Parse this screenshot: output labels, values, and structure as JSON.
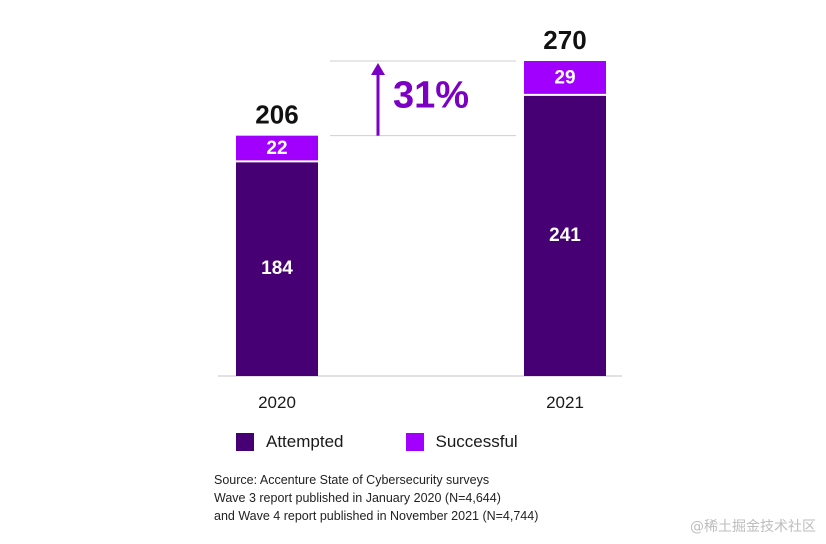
{
  "chart_data": {
    "type": "bar",
    "stacked": true,
    "categories": [
      "2020",
      "2021"
    ],
    "series": [
      {
        "name": "Attempted",
        "values": [
          184,
          241
        ],
        "color": "#460073"
      },
      {
        "name": "Successful",
        "values": [
          22,
          29
        ],
        "color": "#a100ff"
      }
    ],
    "totals": [
      "206",
      "270"
    ],
    "annotation": {
      "text": "31%",
      "description": "increase from 2020 to 2021"
    },
    "ylim": [
      0,
      270
    ],
    "legend_position": "bottom"
  },
  "legend": {
    "attempted": "Attempted",
    "successful": "Successful"
  },
  "source": {
    "line1": "Source: Accenture State of Cybersecurity surveys",
    "line2": "Wave 3 report published in January 2020 (N=4,644)",
    "line3": "and Wave 4 report published in November 2021 (N=4,744)"
  },
  "watermark": "@稀土掘金技术社区",
  "colors": {
    "attempted": "#460073",
    "successful": "#a100ff",
    "annotation": "#7b00c4"
  }
}
